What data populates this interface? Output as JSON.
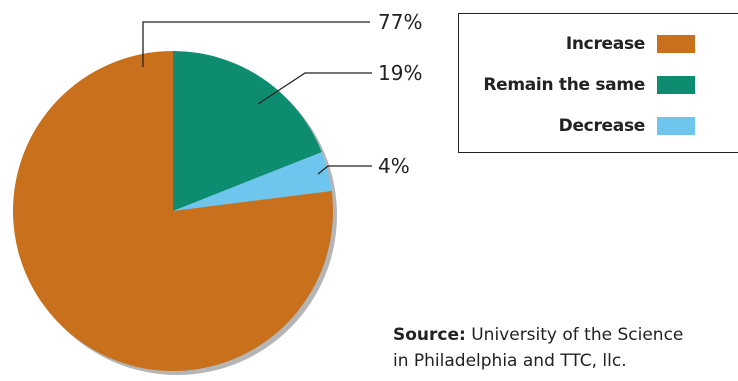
{
  "chart_data": {
    "type": "pie",
    "categories": [
      "Increase",
      "Remain the same",
      "Decrease"
    ],
    "values": [
      77,
      19,
      4
    ],
    "labels": [
      "77%",
      "19%",
      "4%"
    ],
    "colors": [
      "#C8701C",
      "#0E8C70",
      "#6EC6EE"
    ],
    "legend_placement": "top-right"
  },
  "legend": {
    "items": [
      {
        "label": "Increase",
        "color": "#C8701C"
      },
      {
        "label": "Remain the same",
        "color": "#0E8C70"
      },
      {
        "label": "Decrease",
        "color": "#6EC6EE"
      }
    ]
  },
  "source": {
    "label": "Source:",
    "line1": " University of the Science",
    "line2": "in Philadelphia and TTC, llc."
  }
}
